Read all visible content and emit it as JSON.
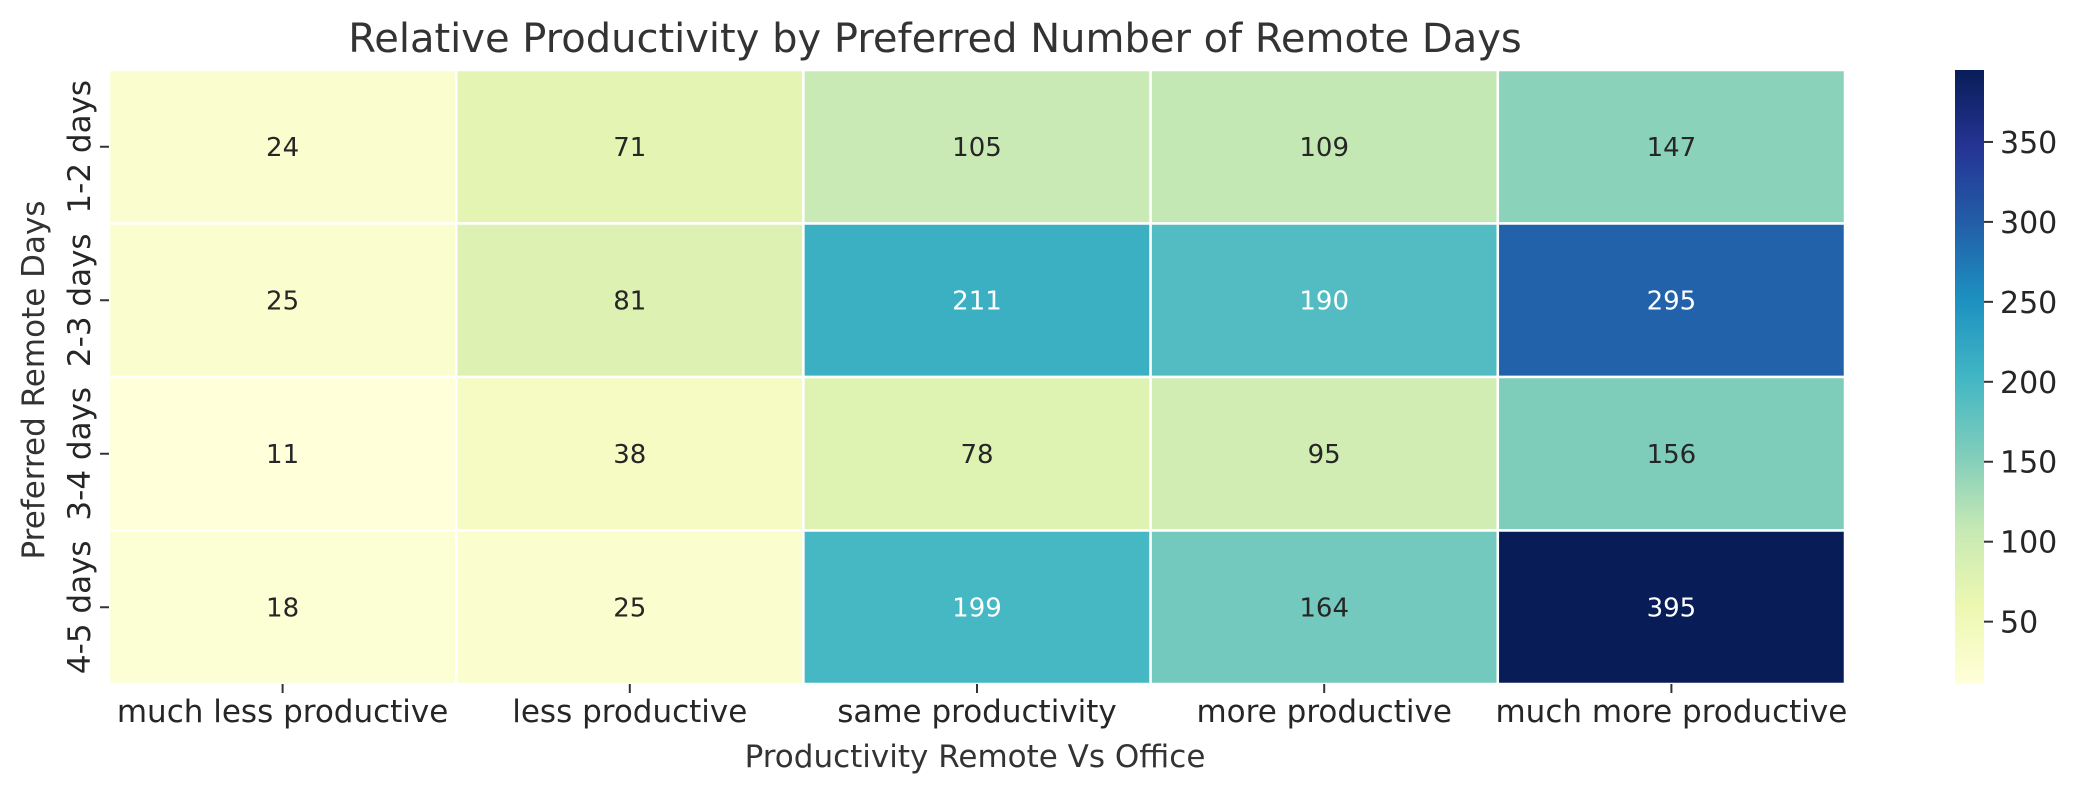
{
  "chart_data": {
    "type": "heatmap",
    "title": "Relative Productivity by Preferred Number of Remote Days",
    "xlabel": "Productivity Remote Vs Office",
    "ylabel": "Preferred Remote Days",
    "x_categories": [
      "much less productive",
      "less productive",
      "same productivity",
      "more productive",
      "much more productive"
    ],
    "y_categories": [
      "1-2 days",
      "2-3 days",
      "3-4 days",
      "4-5 days"
    ],
    "values": [
      [
        24,
        71,
        105,
        109,
        147
      ],
      [
        25,
        81,
        211,
        190,
        295
      ],
      [
        11,
        38,
        78,
        95,
        156
      ],
      [
        18,
        25,
        199,
        164,
        395
      ]
    ],
    "colormap": "YlGnBu",
    "vmin": 11,
    "vmax": 395,
    "colorbar_ticks": [
      50,
      100,
      150,
      200,
      250,
      300,
      350
    ],
    "annotated": true,
    "grid": false
  }
}
